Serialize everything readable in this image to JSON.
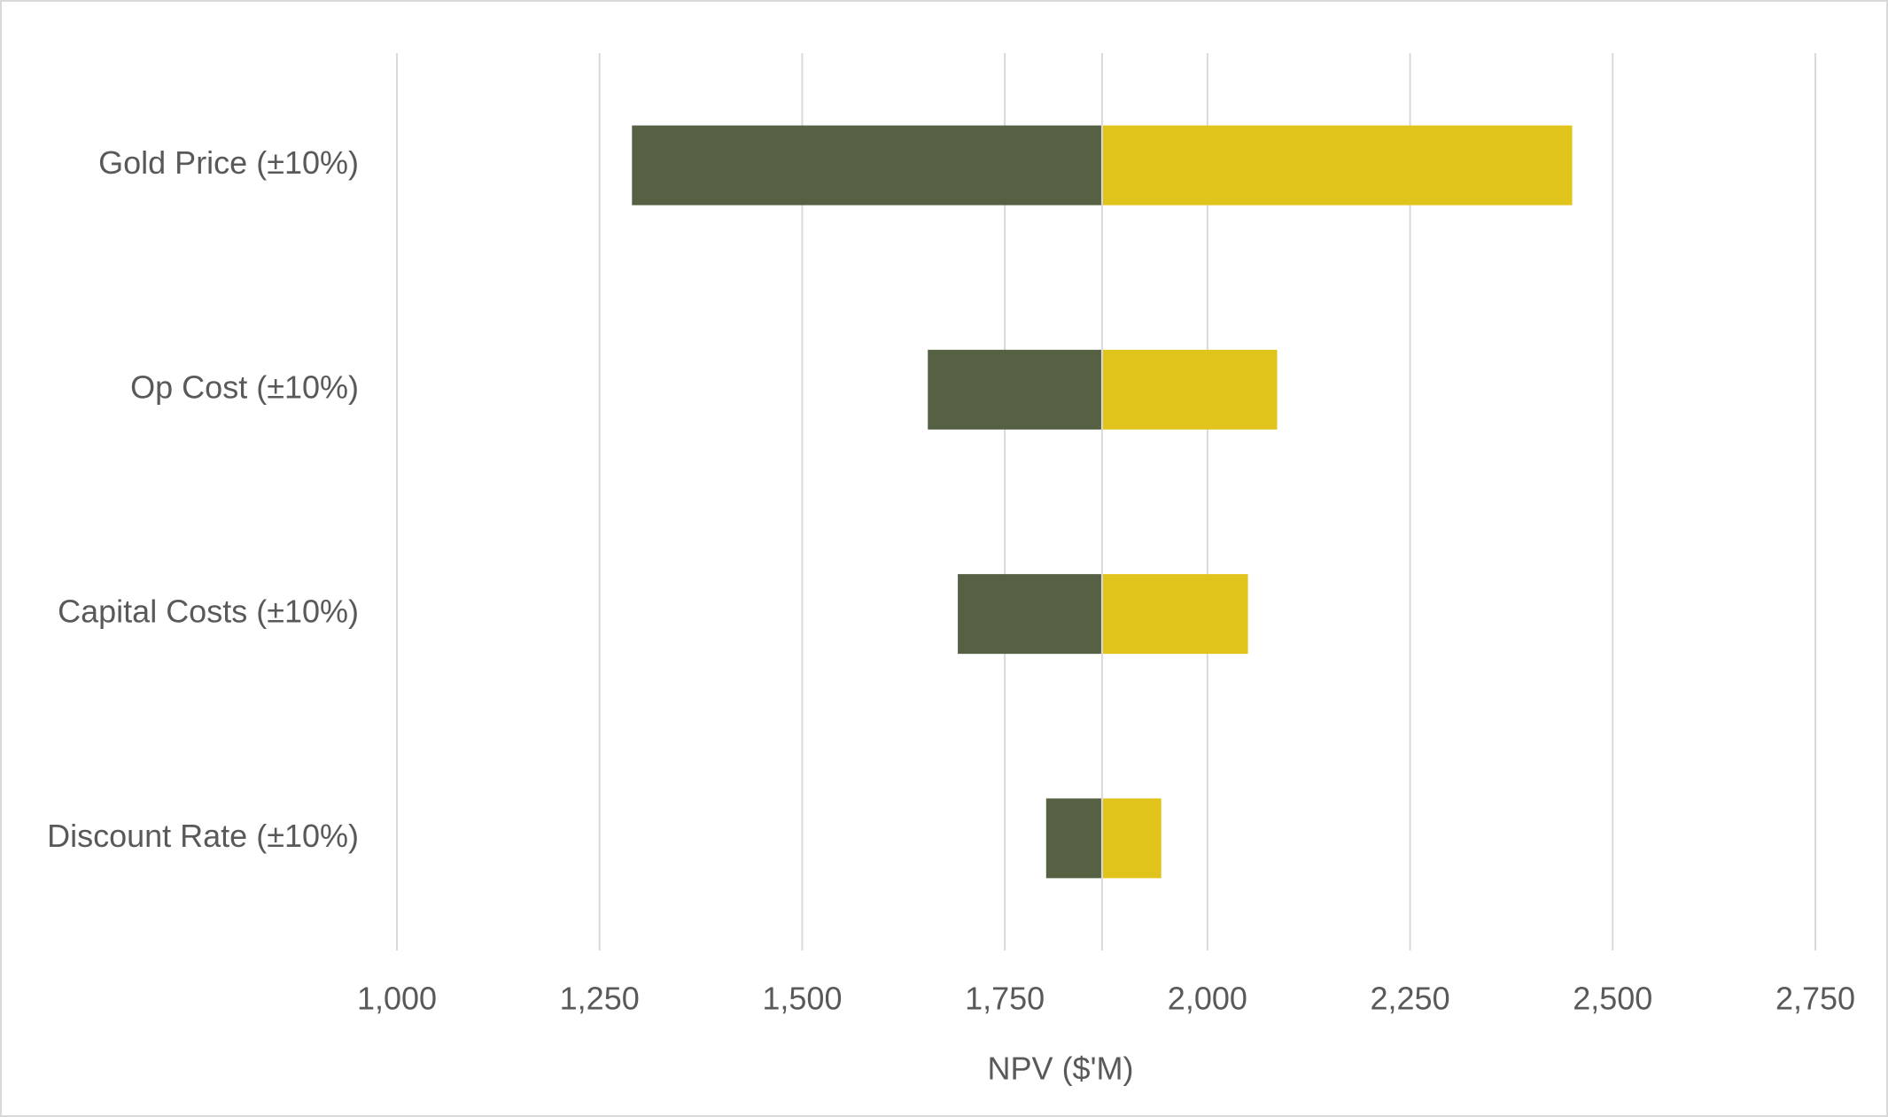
{
  "chart_data": {
    "type": "tornado",
    "x_label": "NPV ($'M)",
    "categories": [
      "Gold Price (±10%)",
      "Op Cost (±10%)",
      "Capital Costs (±10%)",
      "Discount Rate (±10%)"
    ],
    "base": 1870,
    "series": [
      {
        "color": "#566144",
        "values": [
          1290,
          1655,
          1692,
          1801
        ]
      },
      {
        "color": "#e1c41b",
        "values": [
          2450,
          2086,
          2050,
          1943
        ]
      }
    ],
    "xlim": [
      1000,
      2750
    ],
    "xticks": [
      {
        "value": 1000,
        "label": "1,000"
      },
      {
        "value": 1250,
        "label": "1,250"
      },
      {
        "value": 1500,
        "label": "1,500"
      },
      {
        "value": 1750,
        "label": "1,750"
      },
      {
        "value": 2000,
        "label": "2,000"
      },
      {
        "value": 2250,
        "label": "2,250"
      },
      {
        "value": 2500,
        "label": "2,500"
      },
      {
        "value": 2750,
        "label": "2,750"
      }
    ],
    "grid": true
  }
}
